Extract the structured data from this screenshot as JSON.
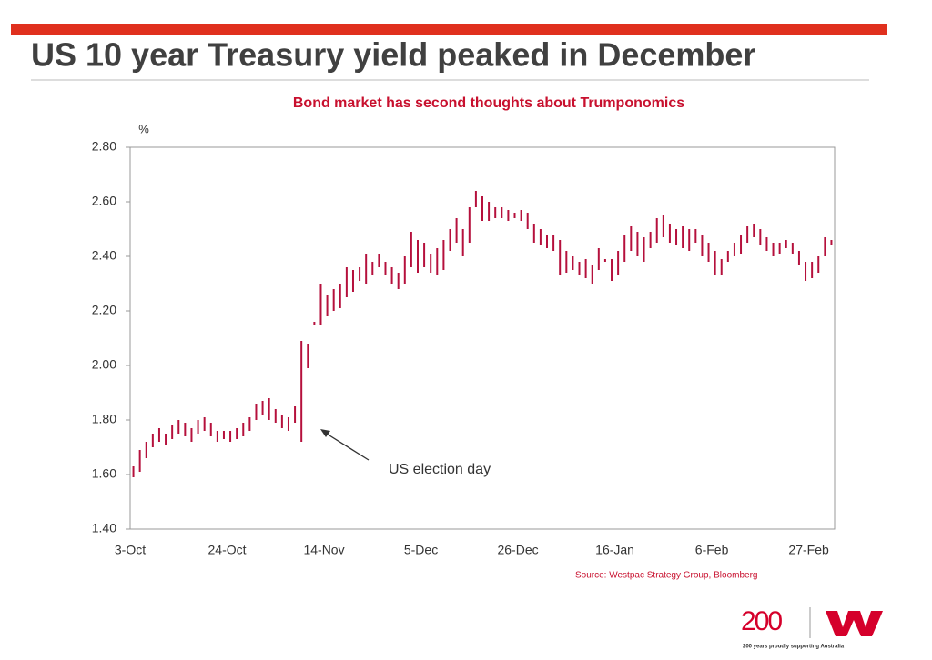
{
  "chart_data": {
    "type": "hilo",
    "title": "US 10 year Treasury yield peaked in December",
    "subtitle": "Bond market has second thoughts about Trumponomics",
    "y_label": "%",
    "annotation": "US election day",
    "source": "Source: Westpac Strategy Group, Bloomberg",
    "logo": "200",
    "tagline": "200 years proudly supporting Australia",
    "color": "#b5103c",
    "ylim": [
      1.4,
      2.8
    ],
    "yticks": [
      {
        "value": 1.4,
        "label": "1.40"
      },
      {
        "value": 1.6,
        "label": "1.60"
      },
      {
        "value": 1.8,
        "label": "1.80"
      },
      {
        "value": 2.0,
        "label": "2.00"
      },
      {
        "value": 2.2,
        "label": "2.20"
      },
      {
        "value": 2.4,
        "label": "2.40"
      },
      {
        "value": 2.6,
        "label": "2.60"
      },
      {
        "value": 2.8,
        "label": "2.80"
      }
    ],
    "categories": [
      "3-Oct",
      null,
      null,
      null,
      null,
      null,
      null,
      null,
      null,
      null,
      null,
      null,
      null,
      null,
      null,
      "24-Oct",
      null,
      null,
      null,
      null,
      null,
      null,
      null,
      null,
      null,
      null,
      null,
      null,
      null,
      null,
      "14-Nov",
      null,
      null,
      null,
      null,
      null,
      null,
      null,
      null,
      null,
      null,
      null,
      null,
      null,
      null,
      "5-Dec",
      null,
      null,
      null,
      null,
      null,
      null,
      null,
      null,
      null,
      null,
      null,
      null,
      null,
      null,
      "26-Dec",
      null,
      null,
      null,
      null,
      null,
      null,
      null,
      null,
      null,
      null,
      null,
      null,
      null,
      null,
      "16-Jan",
      null,
      null,
      null,
      null,
      null,
      null,
      null,
      null,
      null,
      null,
      null,
      null,
      null,
      null,
      "6-Feb",
      null,
      null,
      null,
      null,
      null,
      null,
      null,
      null,
      null,
      null,
      null,
      null,
      null,
      null,
      "27-Feb",
      null,
      null,
      null
    ],
    "low": [
      1.59,
      1.61,
      1.66,
      1.7,
      1.72,
      1.71,
      1.73,
      1.75,
      1.74,
      1.72,
      1.75,
      1.76,
      1.74,
      1.72,
      1.73,
      1.72,
      1.73,
      1.74,
      1.76,
      1.8,
      1.82,
      1.8,
      1.79,
      1.77,
      1.76,
      1.79,
      1.72,
      1.99,
      2.15,
      2.15,
      2.18,
      2.2,
      2.21,
      2.25,
      2.27,
      2.31,
      2.3,
      2.33,
      2.36,
      2.33,
      2.3,
      2.28,
      2.3,
      2.36,
      2.34,
      2.36,
      2.34,
      2.33,
      2.35,
      2.42,
      2.45,
      2.4,
      2.45,
      2.58,
      2.53,
      2.53,
      2.54,
      2.54,
      2.53,
      2.54,
      2.53,
      2.5,
      2.45,
      2.44,
      2.43,
      2.42,
      2.33,
      2.34,
      2.35,
      2.33,
      2.32,
      2.3,
      2.35,
      2.38,
      2.31,
      2.33,
      2.38,
      2.42,
      2.4,
      2.38,
      2.43,
      2.45,
      2.47,
      2.45,
      2.44,
      2.43,
      2.42,
      2.45,
      2.4,
      2.38,
      2.33,
      2.33,
      2.38,
      2.4,
      2.41,
      2.45,
      2.47,
      2.44,
      2.42,
      2.4,
      2.41,
      2.43,
      2.41,
      2.37,
      2.31,
      2.32,
      2.34,
      2.4,
      2.44
    ],
    "high": [
      1.63,
      1.69,
      1.72,
      1.75,
      1.77,
      1.75,
      1.78,
      1.8,
      1.79,
      1.77,
      1.8,
      1.81,
      1.79,
      1.76,
      1.76,
      1.76,
      1.77,
      1.79,
      1.81,
      1.86,
      1.87,
      1.88,
      1.84,
      1.82,
      1.81,
      1.85,
      2.09,
      2.08,
      2.16,
      2.3,
      2.26,
      2.28,
      2.3,
      2.36,
      2.35,
      2.36,
      2.41,
      2.38,
      2.41,
      2.38,
      2.36,
      2.34,
      2.4,
      2.49,
      2.46,
      2.45,
      2.41,
      2.43,
      2.46,
      2.5,
      2.54,
      2.5,
      2.58,
      2.64,
      2.62,
      2.6,
      2.58,
      2.58,
      2.57,
      2.56,
      2.57,
      2.56,
      2.52,
      2.5,
      2.48,
      2.48,
      2.46,
      2.42,
      2.4,
      2.38,
      2.39,
      2.37,
      2.43,
      2.39,
      2.39,
      2.42,
      2.48,
      2.51,
      2.49,
      2.47,
      2.49,
      2.54,
      2.55,
      2.52,
      2.5,
      2.51,
      2.5,
      2.5,
      2.48,
      2.45,
      2.42,
      2.39,
      2.42,
      2.45,
      2.48,
      2.51,
      2.52,
      2.5,
      2.47,
      2.45,
      2.45,
      2.46,
      2.45,
      2.42,
      2.38,
      2.38,
      2.4,
      2.47,
      2.46
    ]
  }
}
